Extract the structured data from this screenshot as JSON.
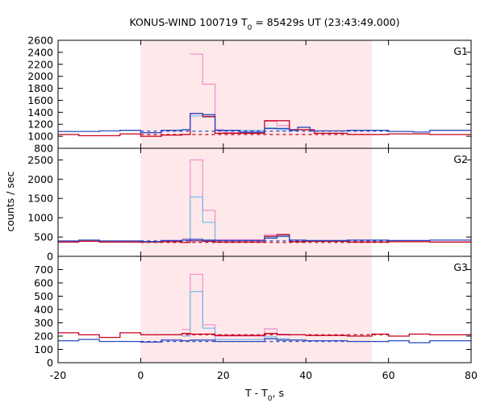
{
  "chart_data": {
    "type": "line",
    "title": "KONUS-WIND 100719 T",
    "title_sub": "0",
    "title_rest": " = 85429s UT (23:43:49.000)",
    "xlabel": "T - T",
    "xlabel_sub": "0",
    "xlabel_rest": ", s",
    "ylabel": "counts / sec",
    "xlim": [
      -20,
      80
    ],
    "x_ticks": [
      "-20",
      "0",
      "20",
      "40",
      "60",
      "80"
    ],
    "shade_range": [
      0,
      56
    ],
    "colors": {
      "shade": "#ffe8ea",
      "red": "#c4001c",
      "blue": "#2a49c0",
      "pink": "#f07ac8",
      "lightblue": "#5ab4ec"
    },
    "panels": [
      {
        "label": "G1",
        "ylim": [
          1000,
          2600
        ],
        "ymin_draw": 800,
        "y_ticks": [
          "800",
          "1000",
          "1200",
          "1400",
          "1600",
          "1800",
          "2000",
          "2200",
          "2400",
          "2600"
        ],
        "bg_red": 1030,
        "bg_blue": 1085,
        "red_steps": [
          [
            -20,
            1030
          ],
          [
            -15,
            1010
          ],
          [
            -5,
            1040
          ],
          [
            0,
            1000
          ],
          [
            5,
            1020
          ],
          [
            10,
            1030
          ],
          [
            12,
            1380
          ],
          [
            15,
            1330
          ],
          [
            18,
            1050
          ],
          [
            30,
            1260
          ],
          [
            36,
            1110
          ],
          [
            42,
            1050
          ],
          [
            50,
            1030
          ],
          [
            60,
            1040
          ],
          [
            70,
            1030
          ],
          [
            80,
            1030
          ]
        ],
        "blue_steps": [
          [
            -20,
            1080
          ],
          [
            -10,
            1090
          ],
          [
            -5,
            1100
          ],
          [
            0,
            1060
          ],
          [
            5,
            1100
          ],
          [
            10,
            1110
          ],
          [
            12,
            1380
          ],
          [
            15,
            1360
          ],
          [
            18,
            1100
          ],
          [
            24,
            1070
          ],
          [
            30,
            1130
          ],
          [
            36,
            1100
          ],
          [
            38,
            1150
          ],
          [
            41,
            1090
          ],
          [
            50,
            1100
          ],
          [
            60,
            1080
          ],
          [
            66,
            1070
          ],
          [
            70,
            1100
          ],
          [
            80,
            1100
          ]
        ],
        "pink_steps": [
          [
            12,
            2370
          ],
          [
            15,
            1870
          ],
          [
            18,
            1110
          ],
          [
            20,
            1060
          ],
          [
            30,
            1250
          ],
          [
            33,
            1180
          ],
          [
            36,
            1060
          ]
        ],
        "lightblue_steps": [
          [
            12,
            1340
          ],
          [
            15,
            1320
          ],
          [
            18,
            1100
          ],
          [
            30,
            1140
          ],
          [
            33,
            1110
          ],
          [
            36,
            1100
          ]
        ]
      },
      {
        "label": "G2",
        "ylim": [
          0,
          2800
        ],
        "ymin_draw": 0,
        "y_ticks": [
          "0",
          "500",
          "1000",
          "1500",
          "2000",
          "2500"
        ],
        "bg_red": 360,
        "bg_blue": 400,
        "red_steps": [
          [
            -20,
            370
          ],
          [
            -15,
            390
          ],
          [
            -10,
            370
          ],
          [
            0,
            370
          ],
          [
            5,
            380
          ],
          [
            10,
            360
          ],
          [
            12,
            400
          ],
          [
            15,
            390
          ],
          [
            18,
            370
          ],
          [
            30,
            520
          ],
          [
            33,
            560
          ],
          [
            36,
            380
          ],
          [
            40,
            390
          ],
          [
            50,
            370
          ],
          [
            60,
            380
          ],
          [
            70,
            370
          ],
          [
            80,
            370
          ]
        ],
        "blue_steps": [
          [
            -20,
            400
          ],
          [
            -15,
            420
          ],
          [
            -10,
            400
          ],
          [
            0,
            380
          ],
          [
            5,
            410
          ],
          [
            10,
            420
          ],
          [
            12,
            440
          ],
          [
            15,
            420
          ],
          [
            18,
            410
          ],
          [
            30,
            470
          ],
          [
            33,
            520
          ],
          [
            36,
            420
          ],
          [
            40,
            410
          ],
          [
            50,
            420
          ],
          [
            60,
            410
          ],
          [
            70,
            420
          ],
          [
            80,
            420
          ]
        ],
        "pink_steps": [
          [
            10,
            460
          ],
          [
            12,
            2500
          ],
          [
            15,
            1190
          ],
          [
            18,
            430
          ],
          [
            30,
            560
          ],
          [
            33,
            570
          ],
          [
            36,
            420
          ]
        ],
        "lightblue_steps": [
          [
            10,
            430
          ],
          [
            12,
            1540
          ],
          [
            15,
            880
          ],
          [
            18,
            410
          ],
          [
            30,
            500
          ],
          [
            33,
            510
          ],
          [
            36,
            400
          ]
        ]
      },
      {
        "label": "G3",
        "ylim": [
          0,
          800
        ],
        "ymin_draw": 0,
        "y_ticks": [
          "0",
          "100",
          "200",
          "300",
          "400",
          "500",
          "600",
          "700"
        ],
        "bg_red": 210,
        "bg_blue": 160,
        "red_steps": [
          [
            -20,
            225
          ],
          [
            -15,
            210
          ],
          [
            -10,
            190
          ],
          [
            -5,
            225
          ],
          [
            0,
            210
          ],
          [
            10,
            220
          ],
          [
            12,
            215
          ],
          [
            15,
            215
          ],
          [
            18,
            205
          ],
          [
            30,
            220
          ],
          [
            33,
            210
          ],
          [
            40,
            205
          ],
          [
            50,
            200
          ],
          [
            56,
            215
          ],
          [
            60,
            200
          ],
          [
            65,
            215
          ],
          [
            70,
            210
          ],
          [
            80,
            220
          ]
        ],
        "blue_steps": [
          [
            -20,
            165
          ],
          [
            -15,
            175
          ],
          [
            -10,
            160
          ],
          [
            0,
            155
          ],
          [
            5,
            170
          ],
          [
            10,
            165
          ],
          [
            12,
            170
          ],
          [
            15,
            170
          ],
          [
            18,
            160
          ],
          [
            30,
            180
          ],
          [
            33,
            170
          ],
          [
            40,
            165
          ],
          [
            50,
            160
          ],
          [
            60,
            165
          ],
          [
            65,
            150
          ],
          [
            70,
            165
          ],
          [
            80,
            165
          ]
        ],
        "pink_steps": [
          [
            10,
            250
          ],
          [
            12,
            665
          ],
          [
            15,
            285
          ],
          [
            18,
            200
          ],
          [
            30,
            255
          ],
          [
            33,
            215
          ],
          [
            36,
            200
          ]
        ],
        "lightblue_steps": [
          [
            10,
            200
          ],
          [
            12,
            535
          ],
          [
            15,
            260
          ],
          [
            18,
            175
          ],
          [
            30,
            195
          ],
          [
            33,
            180
          ],
          [
            36,
            170
          ]
        ]
      }
    ]
  }
}
